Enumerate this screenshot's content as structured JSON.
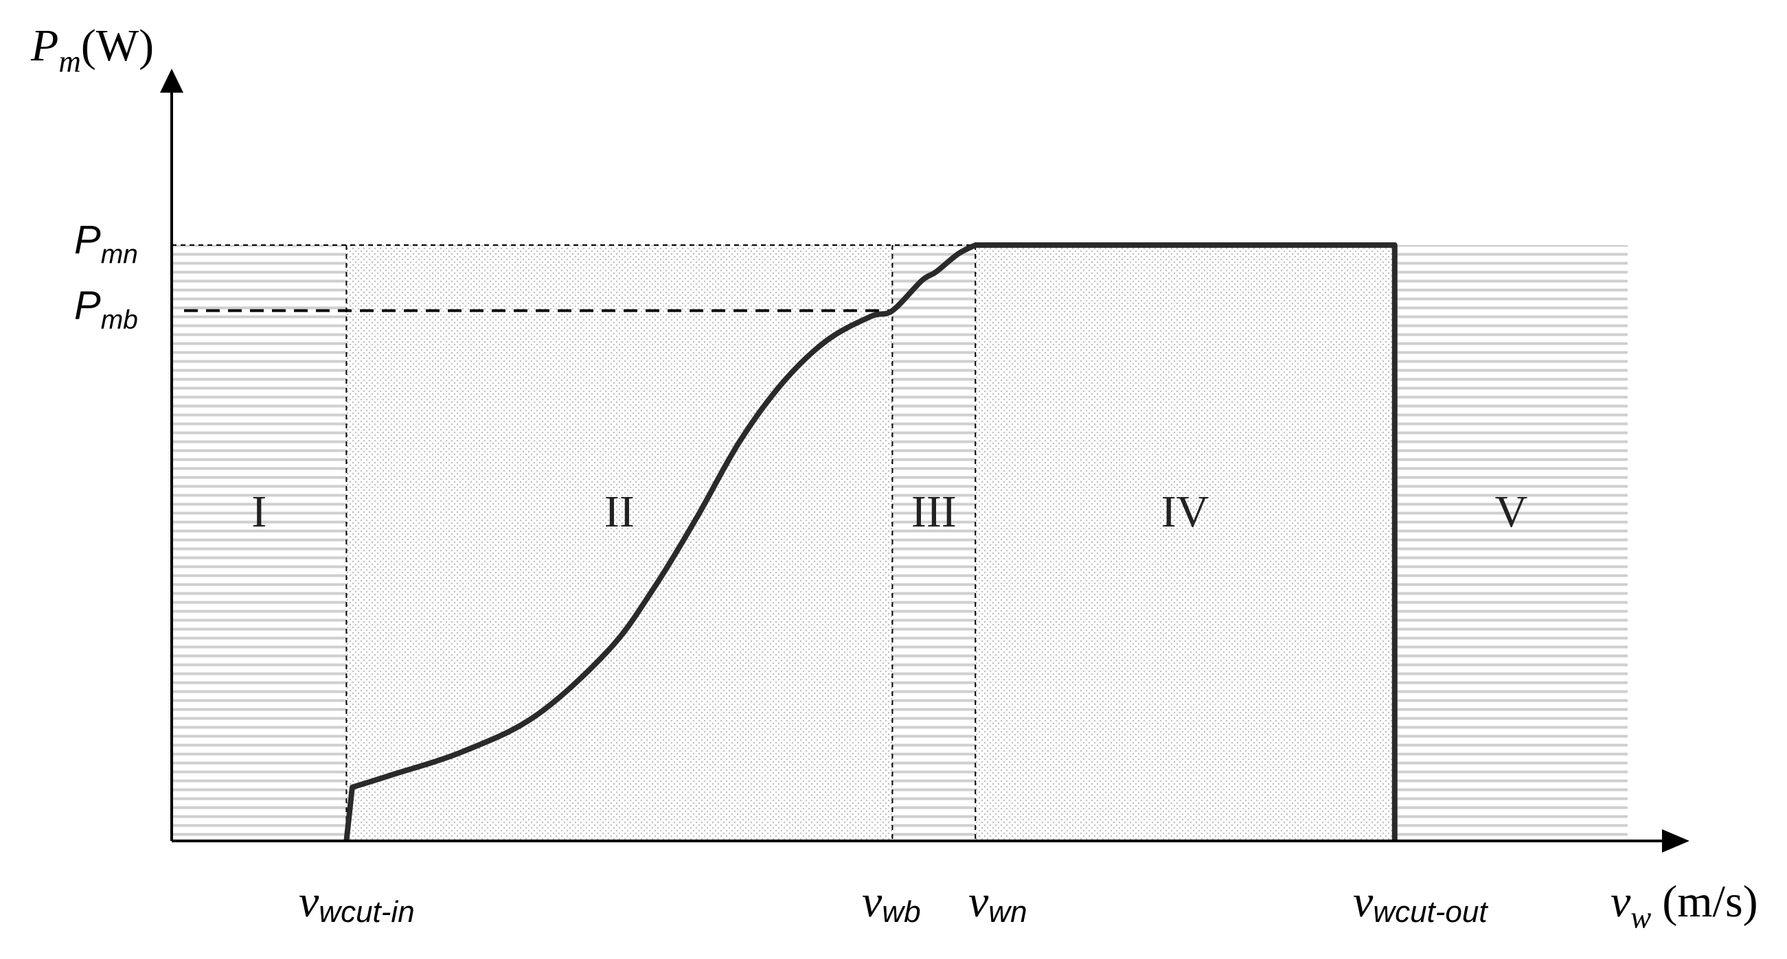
{
  "chart_data": {
    "type": "line",
    "title": "",
    "y_axis": {
      "symbol": "P",
      "sub": "m",
      "unit": "(W)",
      "ticks": [
        {
          "key": "Pmn",
          "symbol": "P",
          "sub": "mn",
          "value": 1.0
        },
        {
          "key": "Pmb",
          "symbol": "P",
          "sub": "mb",
          "value": 0.89
        }
      ]
    },
    "x_axis": {
      "symbol": "v",
      "sub": "w",
      "unit": "(m/s)",
      "ticks": [
        {
          "key": "vwcutin",
          "symbol": "v",
          "sub": "wcut-in",
          "value": 0.12
        },
        {
          "key": "vwb",
          "symbol": "v",
          "sub": "wb",
          "value": 0.495
        },
        {
          "key": "vwn",
          "symbol": "v",
          "sub": "wn",
          "value": 0.552
        },
        {
          "key": "vwcutout",
          "symbol": "v",
          "sub": "wcut-out",
          "value": 0.84
        }
      ]
    },
    "regions": [
      {
        "label": "I",
        "x0": 0.0,
        "x1": 0.12,
        "pattern": "lines"
      },
      {
        "label": "II",
        "x0": 0.12,
        "x1": 0.495,
        "pattern": "dots"
      },
      {
        "label": "III",
        "x0": 0.495,
        "x1": 0.552,
        "pattern": "lines"
      },
      {
        "label": "IV",
        "x0": 0.552,
        "x1": 0.84,
        "pattern": "dots"
      },
      {
        "label": "V",
        "x0": 0.84,
        "x1": 1.0,
        "pattern": "lines"
      }
    ],
    "series": [
      {
        "x": [
          0.12,
          0.124,
          0.15,
          0.2,
          0.25,
          0.3,
          0.33,
          0.36,
          0.39,
          0.42,
          0.45,
          0.48,
          0.495,
          0.515,
          0.525,
          0.54,
          0.552,
          0.84,
          0.84
        ],
        "y": [
          0.0,
          0.09,
          0.11,
          0.15,
          0.21,
          0.32,
          0.42,
          0.54,
          0.67,
          0.77,
          0.84,
          0.88,
          0.89,
          0.94,
          0.955,
          0.985,
          1.0,
          1.0,
          0.0
        ]
      }
    ],
    "ylim": [
      0,
      1.35
    ],
    "xlim": [
      0,
      1.0
    ],
    "grid": false,
    "colors": {
      "curve": "#2a2a2a",
      "axis": "#000000",
      "line_pattern": "#cfcfcf",
      "dot_pattern": "#bdbdbd"
    }
  }
}
